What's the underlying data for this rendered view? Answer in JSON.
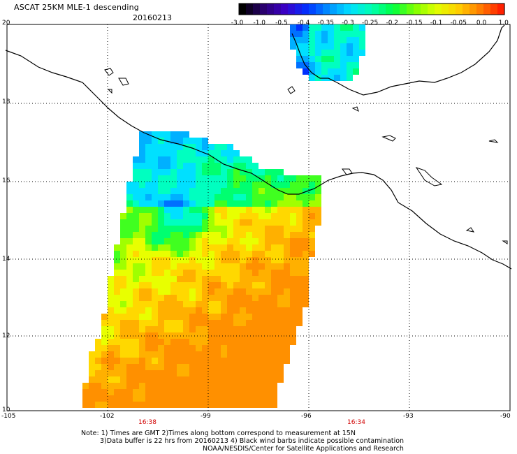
{
  "title": "ASCAT 25KM MLE-1 descending",
  "date": "20160213",
  "colorbar": {
    "labels": [
      "-3.0",
      "-1.0",
      "-0.5",
      "-0.4",
      "-0.35",
      "-0.3",
      "-0.25",
      "-0.2",
      "-0.15",
      "-0.1",
      "-0.05",
      "0.0",
      "1.0"
    ],
    "colors": [
      "#000000",
      "#2a0070",
      "#3b00c8",
      "#0030ff",
      "#0090ff",
      "#00e0ff",
      "#00ffb0",
      "#00ff40",
      "#80ff00",
      "#e0ff00",
      "#ffd000",
      "#ff8000",
      "#ff2000"
    ]
  },
  "lat_labels": [
    "20",
    "18",
    "16",
    "14",
    "12",
    "10"
  ],
  "lon_labels": [
    "-105",
    "-102",
    "-99",
    "-96",
    "-93",
    "-90"
  ],
  "times": [
    "16:38",
    "16:34"
  ],
  "notes": {
    "line1": "Note: 1) Times are GMT 2)Times along bottom correspond to measurement at 15N",
    "line2": "3)Data buffer is 22 hrs from 20160213 4) Black wind barbs indicate possible contamination",
    "line3": "NOAA/NESDIS/Center for Satellite Applications and Research"
  }
}
